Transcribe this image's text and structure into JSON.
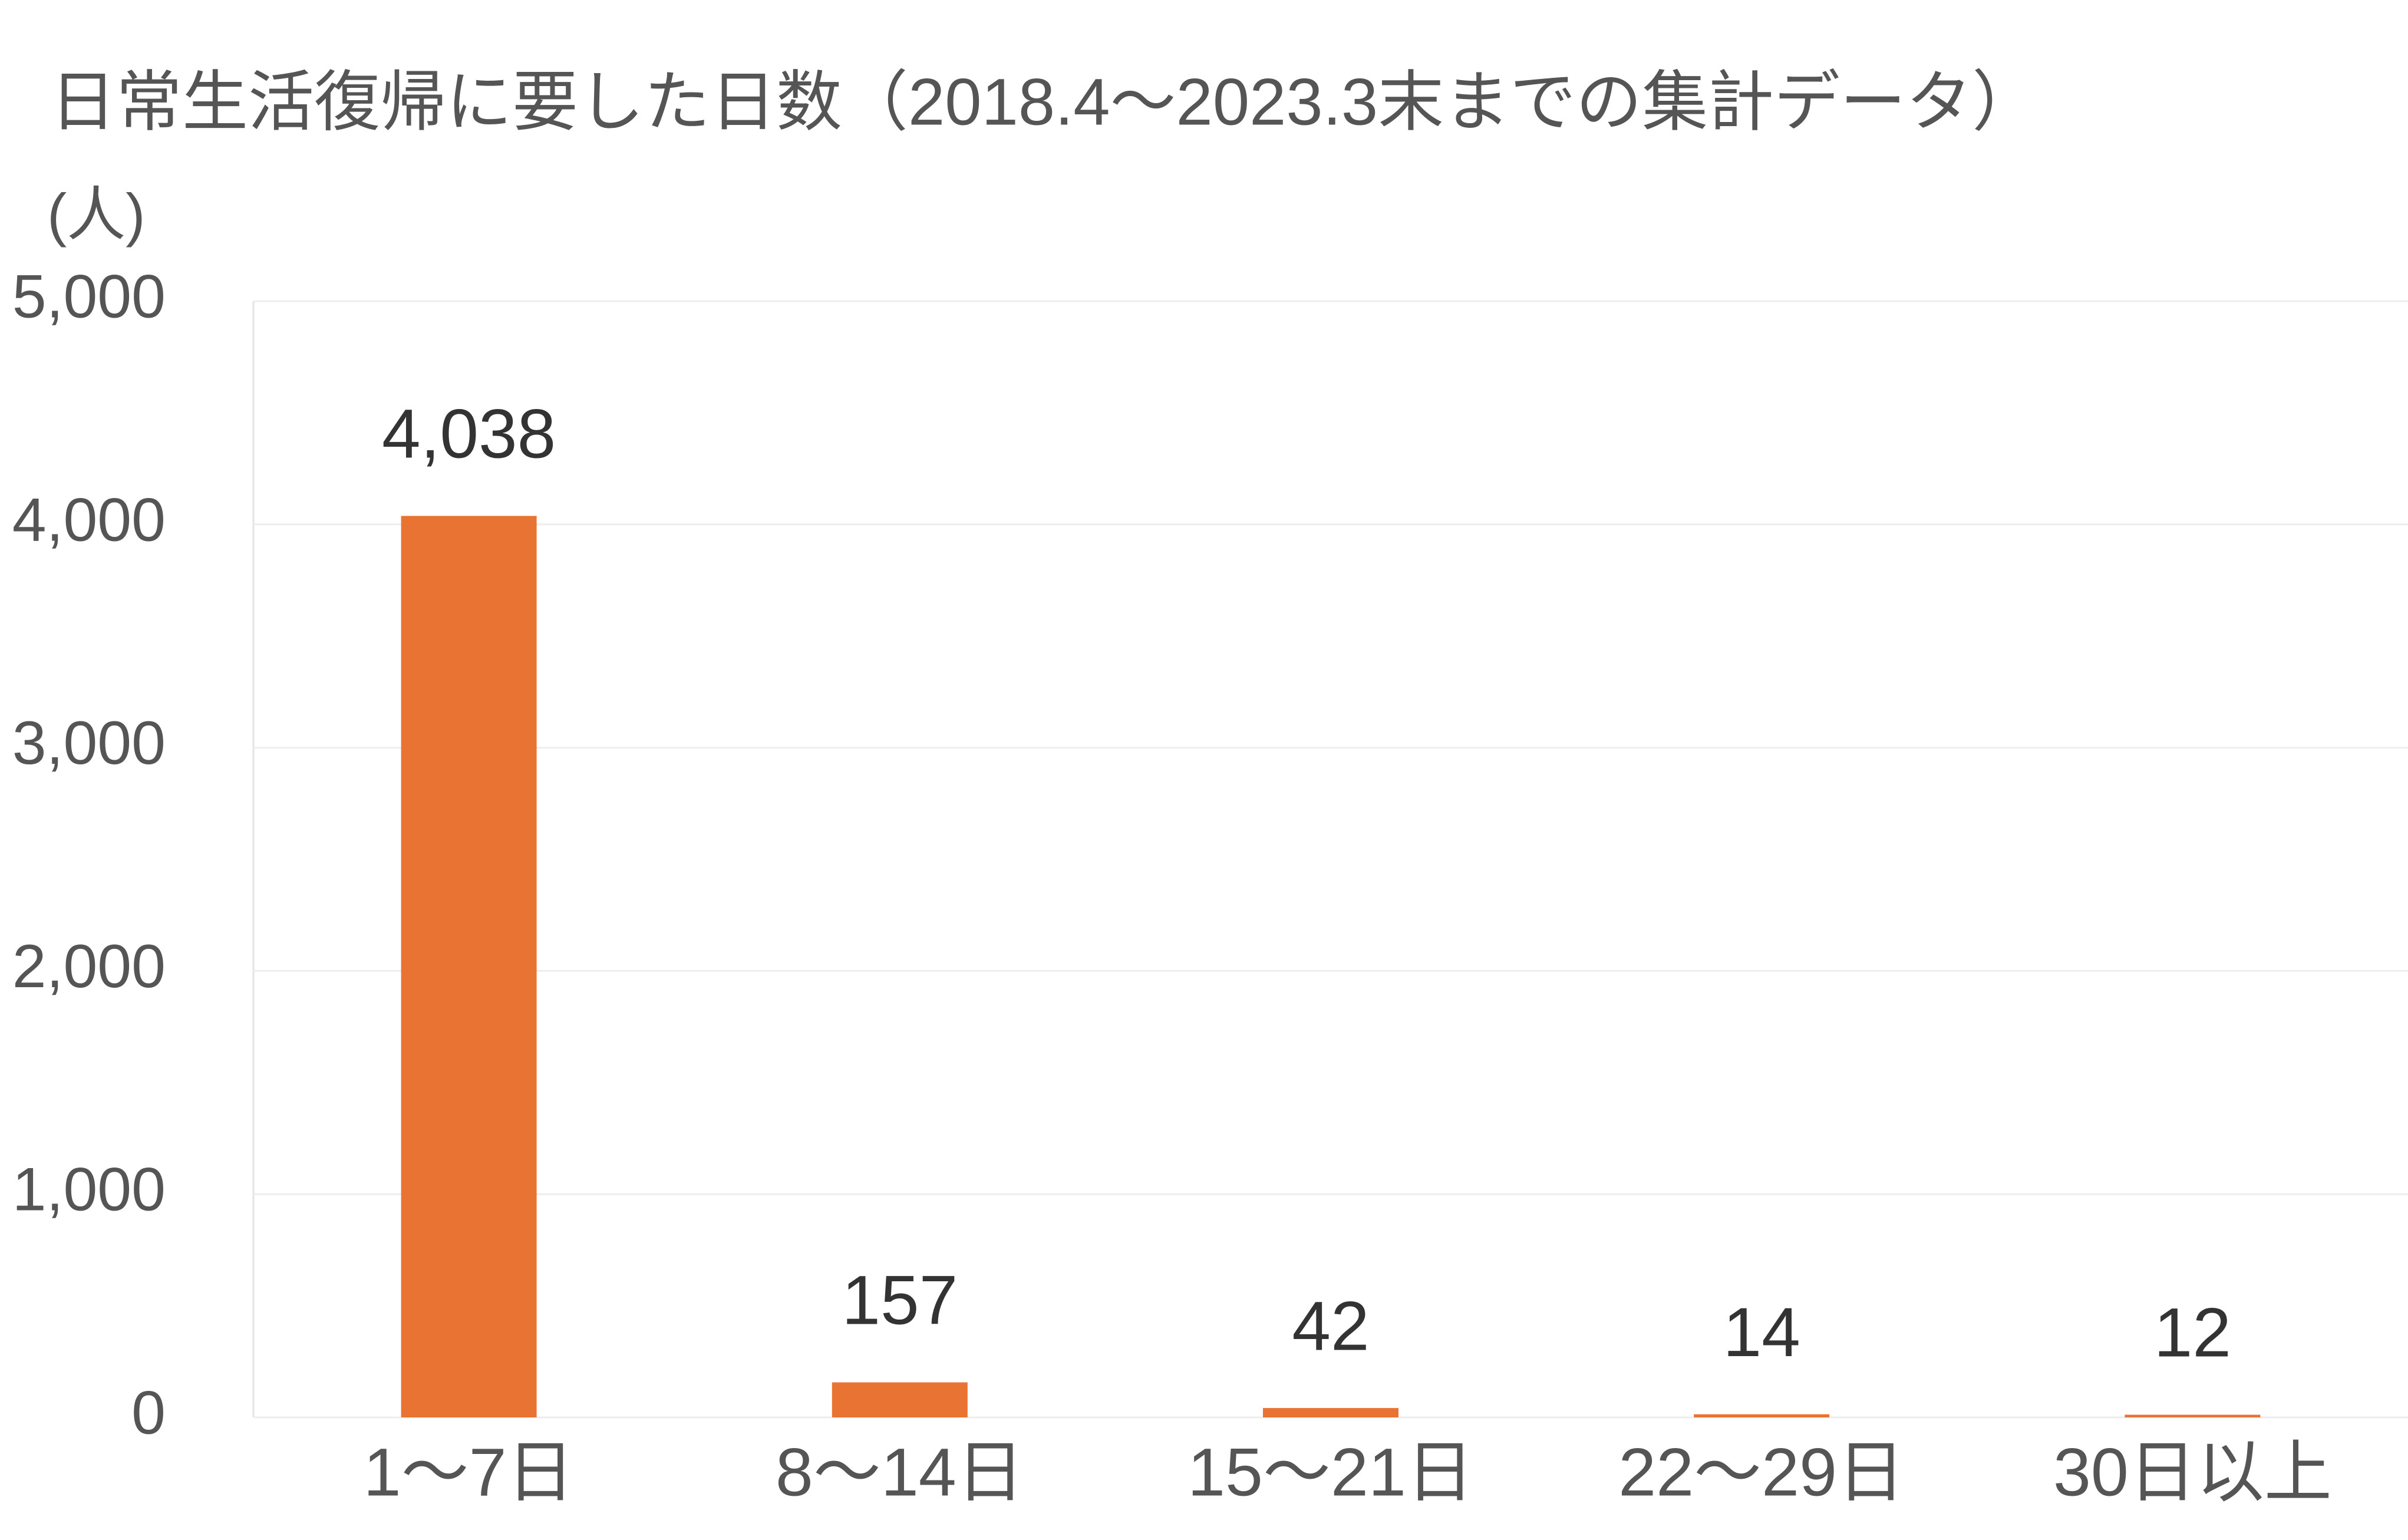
{
  "chart_data": {
    "type": "bar",
    "title": "日常生活復帰に要した日数（2018.4〜2023.3末までの集計データ）",
    "y_label": "(人)",
    "categories": [
      "1〜7日",
      "8〜14日",
      "15〜21日",
      "22〜29日",
      "30日以上"
    ],
    "values": [
      4038,
      157,
      42,
      14,
      12
    ],
    "value_labels": [
      "4,038",
      "157",
      "42",
      "14",
      "12"
    ],
    "color": "#e97332",
    "ylim": [
      0,
      5000
    ],
    "yticks": [
      0,
      {
        "value": 1000,
        "label": "1,000"
      },
      {
        "value": 2000,
        "label": "2,000"
      },
      {
        "value": 3000,
        "label": "3,000"
      },
      {
        "value": 4000,
        "label": "4,000"
      },
      {
        "value": 5000,
        "label": "5,000"
      }
    ],
    "grid": true
  }
}
